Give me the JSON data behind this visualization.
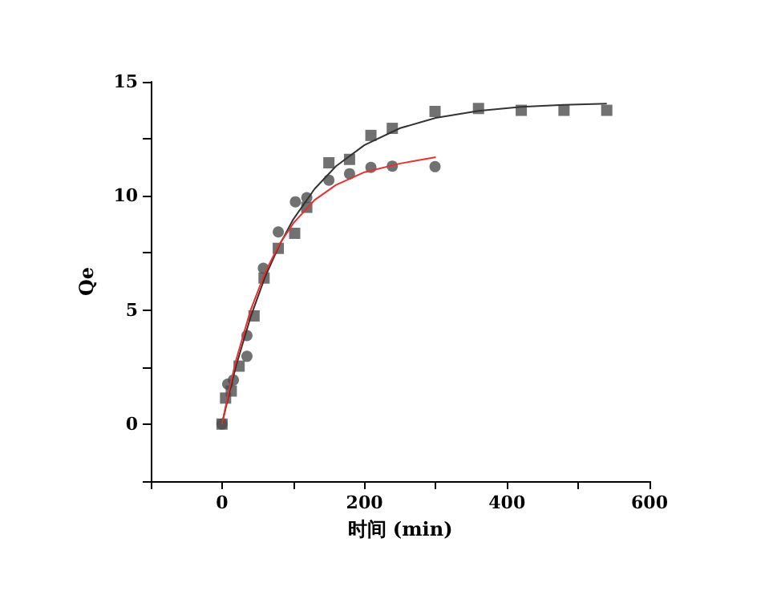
{
  "chart_data": {
    "type": "scatter",
    "xlabel": "时间 (min)",
    "ylabel": "Qe",
    "xlim": [
      -100,
      600
    ],
    "ylim": [
      -2.5,
      15
    ],
    "xticks": [
      {
        "value": -100,
        "label": null
      },
      0,
      {
        "value": 100,
        "label": null
      },
      200,
      {
        "value": 300,
        "label": null
      },
      400,
      {
        "value": 500,
        "label": null
      },
      600
    ],
    "yticks": [
      {
        "value": -2.5,
        "label": null
      },
      0,
      {
        "value": 2.5,
        "label": null
      },
      5,
      {
        "value": 7.5,
        "label": null
      },
      10,
      {
        "value": 12.5,
        "label": null
      },
      15
    ],
    "grid": false,
    "series": [
      {
        "marker": "square",
        "color": "#4d4d4d",
        "x": [
          0,
          5,
          13,
          24,
          45,
          59,
          79,
          102,
          119,
          150,
          179,
          209,
          239,
          299,
          360,
          420,
          480,
          540
        ],
        "values": [
          0,
          1.14,
          1.45,
          2.54,
          4.74,
          6.4,
          7.7,
          8.36,
          9.5,
          11.45,
          11.6,
          12.65,
          12.96,
          13.7,
          13.83,
          13.75,
          13.75,
          13.75
        ]
      },
      {
        "marker": "circle",
        "color": "#4d4d4d",
        "x": [
          0,
          8,
          16,
          35,
          35,
          58,
          79,
          103,
          119,
          150,
          179,
          209,
          239,
          299
        ],
        "values": [
          0,
          1.75,
          1.93,
          2.97,
          3.88,
          6.83,
          8.42,
          9.74,
          9.92,
          10.69,
          10.97,
          11.25,
          11.3,
          11.28
        ]
      },
      {
        "type": "line",
        "marker": "none",
        "color": "#333333",
        "x": [
          0,
          10,
          20,
          40,
          60,
          80,
          100,
          130,
          160,
          200,
          250,
          300,
          360,
          420,
          480,
          540
        ],
        "values": [
          0,
          1.35,
          2.58,
          4.68,
          6.41,
          7.81,
          8.97,
          10.31,
          11.3,
          12.23,
          12.97,
          13.42,
          13.73,
          13.9,
          13.99,
          14.04
        ]
      },
      {
        "type": "line",
        "marker": "none",
        "color": "#e83030",
        "x": [
          0,
          10,
          20,
          40,
          60,
          80,
          100,
          130,
          160,
          200,
          250,
          300
        ],
        "values": [
          0,
          1.51,
          2.83,
          4.98,
          6.61,
          7.86,
          8.8,
          9.82,
          10.48,
          11.04,
          11.42,
          11.7
        ]
      }
    ]
  }
}
